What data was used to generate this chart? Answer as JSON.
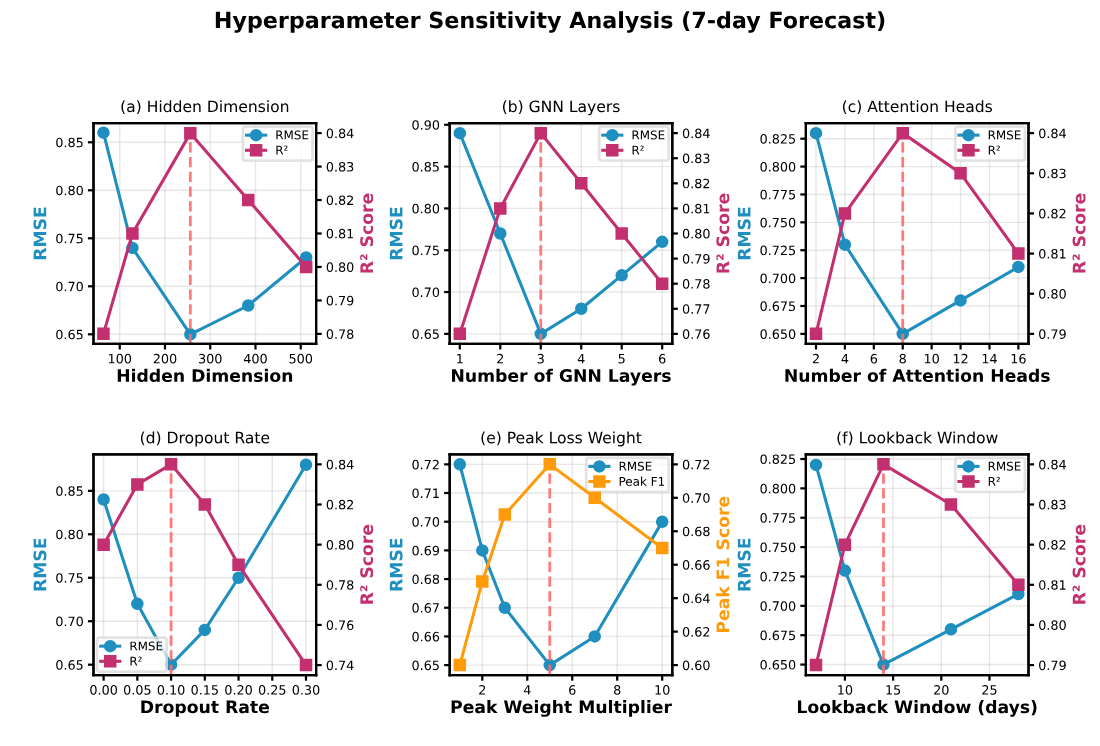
{
  "chart_data": [
    {
      "type": "line",
      "title": "(a) Hidden Dimension",
      "xlabel": "Hidden Dimension",
      "ylabel": "RMSE",
      "y2label": "R² Score",
      "annotations": [
        "Hyperparameter Sensitivity Analysis (7-day Forecast)"
      ],
      "legend": "top right",
      "grid": true,
      "x": [
        64,
        128,
        256,
        384,
        512
      ],
      "xlim": [
        42,
        534
      ],
      "xticks": [
        100,
        200,
        300,
        400,
        500
      ],
      "ylim": [
        0.64,
        0.87
      ],
      "yticks": [
        {
          "value": 0.65,
          "label": "0.65"
        },
        {
          "value": 0.7,
          "label": "0.70"
        },
        {
          "value": 0.75,
          "label": "0.75"
        },
        {
          "value": 0.8,
          "label": "0.80"
        },
        {
          "value": 0.85,
          "label": "0.85"
        }
      ],
      "y2lim": [
        0.777,
        0.843
      ],
      "y2ticks": [
        {
          "value": 0.78,
          "label": "0.78"
        },
        {
          "value": 0.79,
          "label": "0.79"
        },
        {
          "value": 0.8,
          "label": "0.80"
        },
        {
          "value": 0.81,
          "label": "0.81"
        },
        {
          "value": 0.82,
          "label": "0.82"
        },
        {
          "value": 0.83,
          "label": "0.83"
        },
        {
          "value": 0.84,
          "label": "0.84"
        }
      ],
      "ref_lines": [
        {
          "axis": "x",
          "value": 256,
          "color": "#ff6b6b",
          "line_style": "dashed"
        }
      ],
      "series": [
        {
          "name": "RMSE",
          "color": "#1f8fbf",
          "marker": "circle",
          "values": [
            0.86,
            0.74,
            0.65,
            0.68,
            0.73
          ]
        },
        {
          "name": "R²",
          "color": "#c2306f",
          "marker": "square",
          "axis": "y2",
          "values": [
            0.78,
            0.81,
            0.84,
            0.82,
            0.8
          ]
        }
      ]
    },
    {
      "type": "line",
      "title": "(b) GNN Layers",
      "xlabel": "Number of GNN Layers",
      "ylabel": "RMSE",
      "y2label": "R² Score",
      "legend": "top right",
      "grid": true,
      "x": [
        1,
        2,
        3,
        4,
        5,
        6
      ],
      "xlim": [
        0.75,
        6.25
      ],
      "xticks": [
        1,
        2,
        3,
        4,
        5,
        6
      ],
      "ylim": [
        0.638,
        0.902
      ],
      "yticks": [
        {
          "value": 0.65,
          "label": "0.65"
        },
        {
          "value": 0.7,
          "label": "0.70"
        },
        {
          "value": 0.75,
          "label": "0.75"
        },
        {
          "value": 0.8,
          "label": "0.80"
        },
        {
          "value": 0.85,
          "label": "0.85"
        },
        {
          "value": 0.9,
          "label": "0.90"
        }
      ],
      "y2lim": [
        0.756,
        0.844
      ],
      "y2ticks": [
        {
          "value": 0.76,
          "label": "0.76"
        },
        {
          "value": 0.77,
          "label": "0.77"
        },
        {
          "value": 0.78,
          "label": "0.78"
        },
        {
          "value": 0.79,
          "label": "0.79"
        },
        {
          "value": 0.8,
          "label": "0.80"
        },
        {
          "value": 0.81,
          "label": "0.81"
        },
        {
          "value": 0.82,
          "label": "0.82"
        },
        {
          "value": 0.83,
          "label": "0.83"
        },
        {
          "value": 0.84,
          "label": "0.84"
        }
      ],
      "ref_lines": [
        {
          "axis": "x",
          "value": 3,
          "color": "#ff6b6b",
          "line_style": "dashed"
        }
      ],
      "series": [
        {
          "name": "RMSE",
          "color": "#1f8fbf",
          "marker": "circle",
          "values": [
            0.89,
            0.77,
            0.65,
            0.68,
            0.72,
            0.76
          ]
        },
        {
          "name": "R²",
          "color": "#c2306f",
          "marker": "square",
          "axis": "y2",
          "values": [
            0.76,
            0.81,
            0.84,
            0.82,
            0.8,
            0.78
          ]
        }
      ]
    },
    {
      "type": "line",
      "title": "(c) Attention Heads",
      "xlabel": "Number of Attention Heads",
      "ylabel": "RMSE",
      "y2label": "R² Score",
      "legend": "top right",
      "grid": true,
      "x": [
        2,
        4,
        8,
        12,
        16
      ],
      "xlim": [
        1.3,
        16.7
      ],
      "xticks": [
        2,
        4,
        6,
        8,
        10,
        12,
        14,
        16
      ],
      "ylim": [
        0.641,
        0.839
      ],
      "yticks": [
        {
          "value": 0.65,
          "label": "0.650"
        },
        {
          "value": 0.675,
          "label": "0.675"
        },
        {
          "value": 0.7,
          "label": "0.700"
        },
        {
          "value": 0.725,
          "label": "0.725"
        },
        {
          "value": 0.75,
          "label": "0.750"
        },
        {
          "value": 0.775,
          "label": "0.775"
        },
        {
          "value": 0.8,
          "label": "0.800"
        },
        {
          "value": 0.825,
          "label": "0.825"
        }
      ],
      "y2lim": [
        0.7875,
        0.8425
      ],
      "y2ticks": [
        {
          "value": 0.79,
          "label": "0.79"
        },
        {
          "value": 0.8,
          "label": "0.80"
        },
        {
          "value": 0.81,
          "label": "0.81"
        },
        {
          "value": 0.82,
          "label": "0.82"
        },
        {
          "value": 0.83,
          "label": "0.83"
        },
        {
          "value": 0.84,
          "label": "0.84"
        }
      ],
      "ref_lines": [
        {
          "axis": "x",
          "value": 8,
          "color": "#ff6b6b",
          "line_style": "dashed"
        }
      ],
      "series": [
        {
          "name": "RMSE",
          "color": "#1f8fbf",
          "marker": "circle",
          "values": [
            0.83,
            0.73,
            0.65,
            0.68,
            0.71
          ]
        },
        {
          "name": "R²",
          "color": "#c2306f",
          "marker": "square",
          "axis": "y2",
          "values": [
            0.79,
            0.82,
            0.84,
            0.83,
            0.81
          ]
        }
      ]
    },
    {
      "type": "line",
      "title": "(d) Dropout Rate",
      "xlabel": "Dropout Rate",
      "ylabel": "RMSE",
      "y2label": "R² Score",
      "legend": "bottom left",
      "grid": true,
      "x": [
        0.0,
        0.05,
        0.1,
        0.15,
        0.2,
        0.3
      ],
      "xlim": [
        -0.015,
        0.315
      ],
      "xticks": [
        {
          "value": 0,
          "label": "0.00"
        },
        {
          "value": 0.05,
          "label": "0.05"
        },
        {
          "value": 0.1,
          "label": "0.10"
        },
        {
          "value": 0.15,
          "label": "0.15"
        },
        {
          "value": 0.2,
          "label": "0.20"
        },
        {
          "value": 0.25,
          "label": "0.25"
        },
        {
          "value": 0.3,
          "label": "0.30"
        }
      ],
      "ylim": [
        0.638,
        0.892
      ],
      "yticks": [
        {
          "value": 0.65,
          "label": "0.65"
        },
        {
          "value": 0.7,
          "label": "0.70"
        },
        {
          "value": 0.75,
          "label": "0.75"
        },
        {
          "value": 0.8,
          "label": "0.80"
        },
        {
          "value": 0.85,
          "label": "0.85"
        }
      ],
      "y2lim": [
        0.735,
        0.845
      ],
      "y2ticks": [
        {
          "value": 0.74,
          "label": "0.74"
        },
        {
          "value": 0.76,
          "label": "0.76"
        },
        {
          "value": 0.78,
          "label": "0.78"
        },
        {
          "value": 0.8,
          "label": "0.80"
        },
        {
          "value": 0.82,
          "label": "0.82"
        },
        {
          "value": 0.84,
          "label": "0.84"
        }
      ],
      "ref_lines": [
        {
          "axis": "x",
          "value": 0.1,
          "color": "#ff6b6b",
          "line_style": "dashed"
        }
      ],
      "series": [
        {
          "name": "RMSE",
          "color": "#1f8fbf",
          "marker": "circle",
          "values": [
            0.84,
            0.72,
            0.65,
            0.69,
            0.75,
            0.88
          ]
        },
        {
          "name": "R²",
          "color": "#c2306f",
          "marker": "square",
          "axis": "y2",
          "values": [
            0.8,
            0.83,
            0.84,
            0.82,
            0.79,
            0.74
          ]
        }
      ]
    },
    {
      "type": "line",
      "title": "(e) Peak Loss Weight",
      "xlabel": "Peak Weight Multiplier",
      "ylabel": "RMSE",
      "y2label": "Peak F1 Score",
      "legend": "top right",
      "grid": true,
      "x": [
        1,
        2,
        3,
        5,
        7,
        10
      ],
      "xlim": [
        0.55,
        10.45
      ],
      "xticks": [
        2,
        4,
        6,
        8,
        10
      ],
      "ylim": [
        0.6465,
        0.7235
      ],
      "yticks": [
        {
          "value": 0.65,
          "label": "0.65"
        },
        {
          "value": 0.66,
          "label": "0.66"
        },
        {
          "value": 0.67,
          "label": "0.67"
        },
        {
          "value": 0.68,
          "label": "0.68"
        },
        {
          "value": 0.69,
          "label": "0.69"
        },
        {
          "value": 0.7,
          "label": "0.70"
        },
        {
          "value": 0.71,
          "label": "0.71"
        },
        {
          "value": 0.72,
          "label": "0.72"
        }
      ],
      "y2lim": [
        0.594,
        0.726
      ],
      "y2ticks": [
        {
          "value": 0.6,
          "label": "0.60"
        },
        {
          "value": 0.62,
          "label": "0.62"
        },
        {
          "value": 0.64,
          "label": "0.64"
        },
        {
          "value": 0.66,
          "label": "0.66"
        },
        {
          "value": 0.68,
          "label": "0.68"
        },
        {
          "value": 0.7,
          "label": "0.70"
        },
        {
          "value": 0.72,
          "label": "0.72"
        }
      ],
      "ref_lines": [
        {
          "axis": "x",
          "value": 5,
          "color": "#ff6b6b",
          "line_style": "dashed"
        }
      ],
      "series": [
        {
          "name": "RMSE",
          "color": "#1f8fbf",
          "marker": "circle",
          "values": [
            0.72,
            0.69,
            0.67,
            0.65,
            0.66,
            0.7
          ]
        },
        {
          "name": "Peak F1",
          "color": "#ff9a0a",
          "marker": "square",
          "axis": "y2",
          "values": [
            0.6,
            0.65,
            0.69,
            0.72,
            0.7,
            0.67
          ]
        }
      ]
    },
    {
      "type": "line",
      "title": "(f) Lookback Window",
      "xlabel": "Lookback Window (days)",
      "ylabel": "RMSE",
      "y2label": "R² Score",
      "legend": "top right",
      "grid": true,
      "x": [
        7,
        10,
        14,
        21,
        28
      ],
      "xlim": [
        5.95,
        29.05
      ],
      "xticks": [
        10,
        15,
        20,
        25
      ],
      "ylim": [
        0.641,
        0.829
      ],
      "yticks": [
        {
          "value": 0.65,
          "label": "0.650"
        },
        {
          "value": 0.675,
          "label": "0.675"
        },
        {
          "value": 0.7,
          "label": "0.700"
        },
        {
          "value": 0.725,
          "label": "0.725"
        },
        {
          "value": 0.75,
          "label": "0.750"
        },
        {
          "value": 0.775,
          "label": "0.775"
        },
        {
          "value": 0.8,
          "label": "0.800"
        },
        {
          "value": 0.825,
          "label": "0.825"
        }
      ],
      "y2lim": [
        0.7875,
        0.8425
      ],
      "y2ticks": [
        {
          "value": 0.79,
          "label": "0.79"
        },
        {
          "value": 0.8,
          "label": "0.80"
        },
        {
          "value": 0.81,
          "label": "0.81"
        },
        {
          "value": 0.82,
          "label": "0.82"
        },
        {
          "value": 0.83,
          "label": "0.83"
        },
        {
          "value": 0.84,
          "label": "0.84"
        }
      ],
      "ref_lines": [
        {
          "axis": "x",
          "value": 14,
          "color": "#ff6b6b",
          "line_style": "dashed"
        }
      ],
      "series": [
        {
          "name": "RMSE",
          "color": "#1f8fbf",
          "marker": "circle",
          "values": [
            0.82,
            0.73,
            0.65,
            0.68,
            0.71
          ]
        },
        {
          "name": "R²",
          "color": "#c2306f",
          "marker": "square",
          "axis": "y2",
          "values": [
            0.79,
            0.82,
            0.84,
            0.83,
            0.81
          ]
        }
      ]
    }
  ]
}
